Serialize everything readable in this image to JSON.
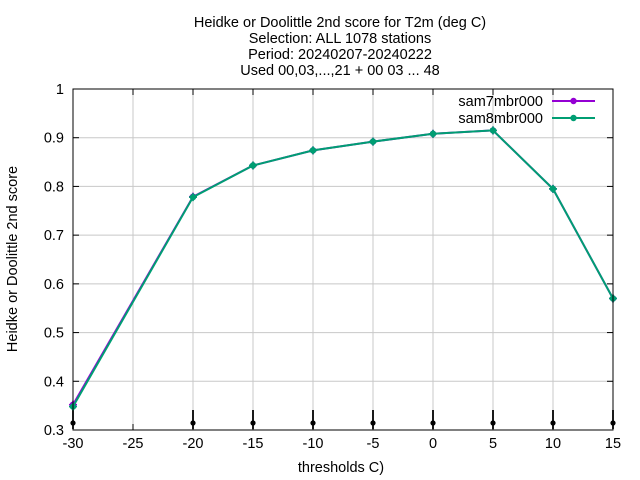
{
  "chart_data": {
    "type": "line",
    "title_lines": [
      "Heidke or Doolittle 2nd score  for T2m (deg C)",
      "Selection: ALL   1078 stations",
      "Period: 20240207-20240222",
      "Used 00,03,...,21 + 00 03 ... 48"
    ],
    "xlabel": "thresholds C)",
    "ylabel": "Heidke or Doolittle 2nd score",
    "xlim": [
      -30,
      15
    ],
    "ylim": [
      0.3,
      1
    ],
    "x_ticks": [
      "-30",
      "-25",
      "-20",
      "-15",
      "-10",
      "-5",
      "0",
      "5",
      "10",
      "15"
    ],
    "y_ticks": [
      "0.3",
      "0.4",
      "0.5",
      "0.6",
      "0.7",
      "0.8",
      "0.9",
      "1"
    ],
    "grid": true,
    "legend_position": "top-right",
    "series": [
      {
        "name": "sam7mbr000",
        "color": "#9400d3",
        "x": [
          -30,
          -20,
          -15,
          -10,
          -5,
          0,
          5,
          10,
          15
        ],
        "y": [
          0.352,
          0.779,
          0.843,
          0.874,
          0.892,
          0.908,
          0.915,
          0.795,
          0.57
        ]
      },
      {
        "name": "sam8mbr000",
        "color": "#009e73",
        "x": [
          -30,
          -20,
          -15,
          -10,
          -5,
          0,
          5,
          10,
          15
        ],
        "y": [
          0.348,
          0.778,
          0.843,
          0.874,
          0.892,
          0.908,
          0.915,
          0.795,
          0.57
        ]
      }
    ],
    "sample_markers_x": [
      -30,
      -20,
      -15,
      -10,
      -5,
      0,
      5,
      10,
      15
    ]
  }
}
